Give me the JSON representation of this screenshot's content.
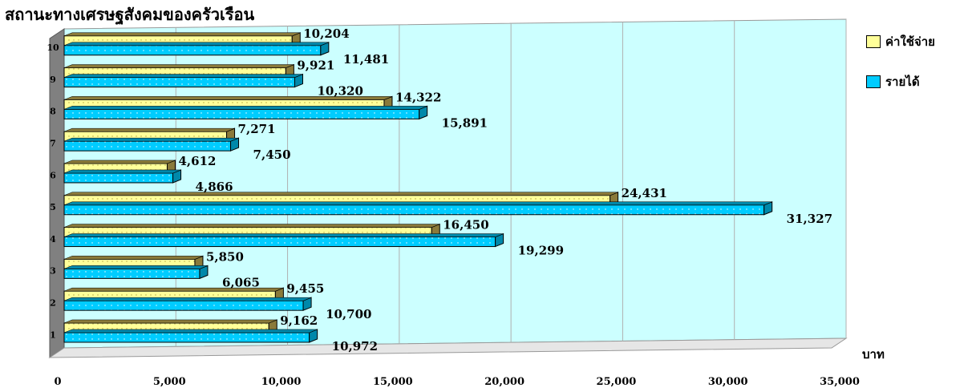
{
  "chart_data": {
    "type": "bar",
    "orientation": "horizontal",
    "title": "สถานะทางเศรษฐสังคมของครัวเรือน",
    "categories": [
      "1",
      "2",
      "3",
      "4",
      "5",
      "6",
      "7",
      "8",
      "9",
      "10"
    ],
    "series": [
      {
        "name": "ค่าใช้จ่าย",
        "values": [
          9162,
          9455,
          5850,
          16450,
          24431,
          4612,
          7271,
          14322,
          9921,
          10204
        ],
        "color": "#ffff99"
      },
      {
        "name": "รายได้",
        "values": [
          10972,
          10700,
          6065,
          19299,
          31327,
          4866,
          7450,
          15891,
          10320,
          11481
        ],
        "color": "#00ccff"
      }
    ],
    "value_labels": {
      "expense": [
        "9,162",
        "9,455",
        "5,850",
        "16,450",
        "24,431",
        "4,612",
        "7,271",
        "14,322",
        "9,921",
        "10,204"
      ],
      "income": [
        "10,972",
        "10,700",
        "6,065",
        "19,299",
        "31,327",
        "4,866",
        "7,450",
        "15,891",
        "10,320",
        "11,481"
      ]
    },
    "xlim": [
      0,
      35000
    ],
    "xticks": [
      0,
      5000,
      10000,
      15000,
      20000,
      25000,
      30000,
      35000
    ],
    "xtick_labels": [
      "0",
      "5,000",
      "10,000",
      "15,000",
      "20,000",
      "25,000",
      "30,000",
      "35,000"
    ],
    "xlabel": "บาท",
    "ylabel": "",
    "grid": true,
    "legend_position": "top-right",
    "plot_background": "#ccffff"
  }
}
